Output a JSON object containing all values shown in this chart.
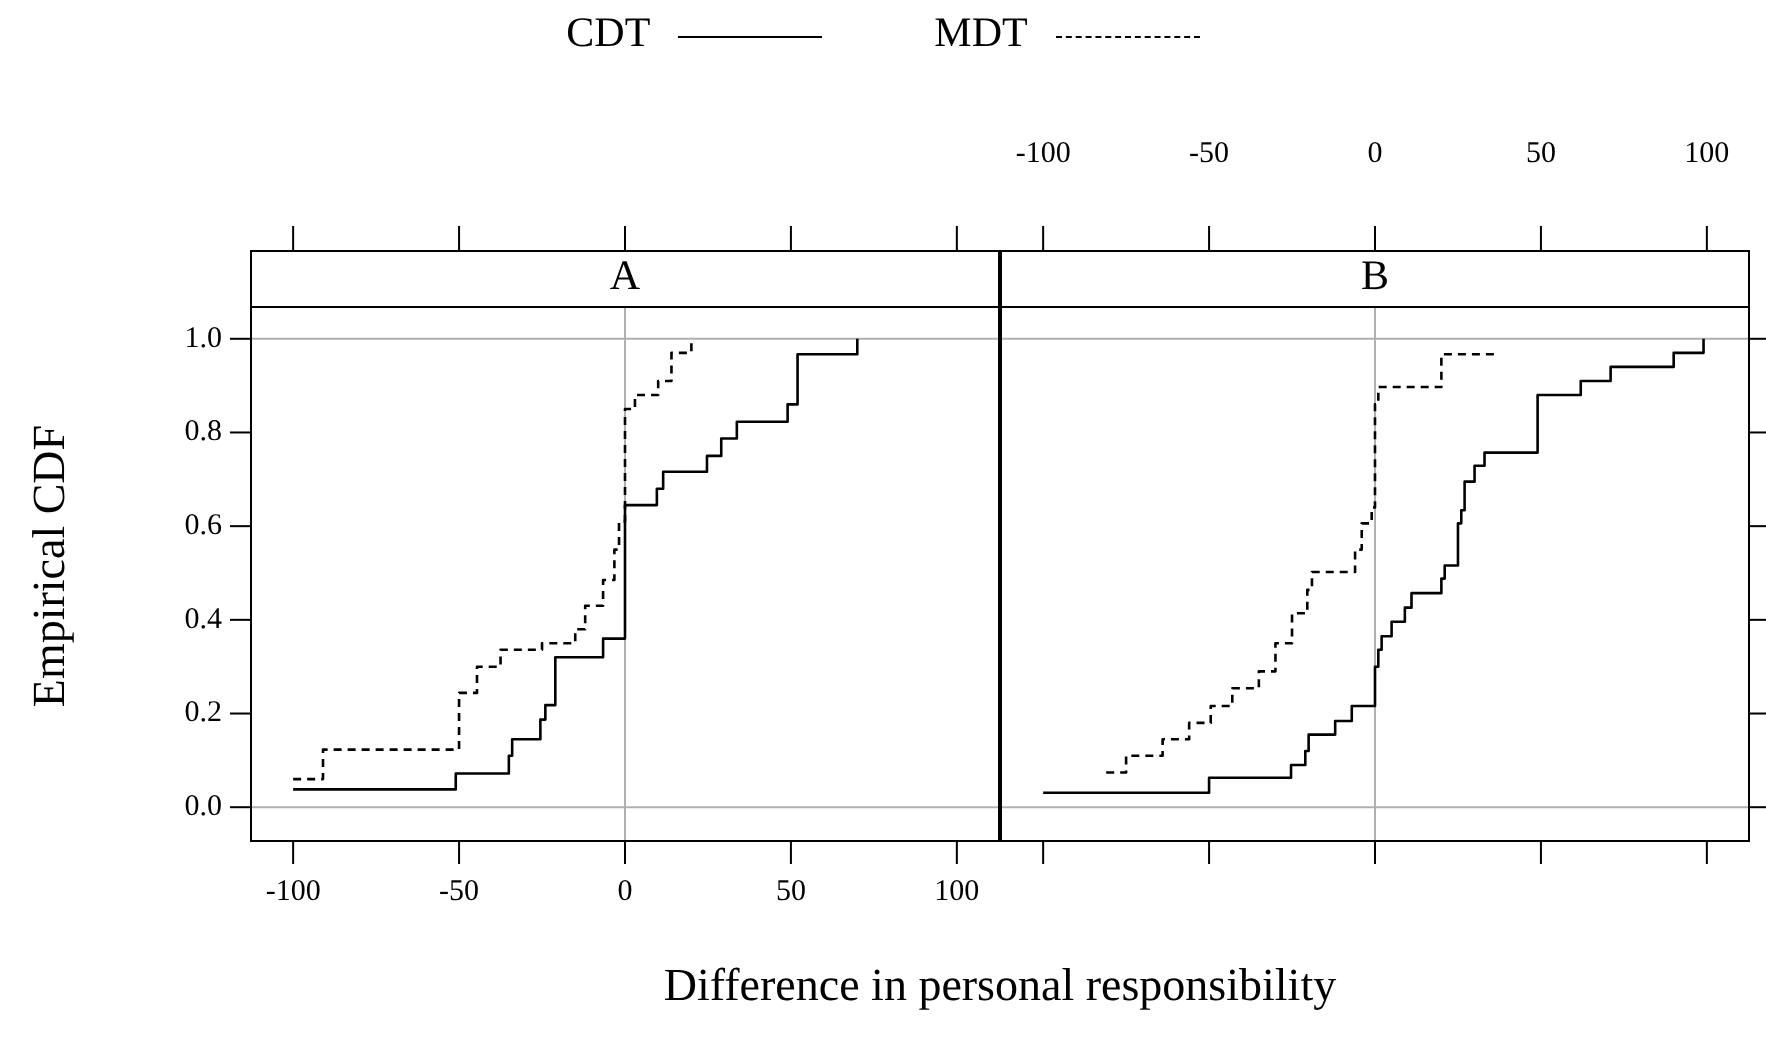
{
  "chart_data": [
    {
      "type": "step",
      "title": "A",
      "xlabel": "Difference in personal responsibility",
      "ylabel": "Empirical CDF",
      "legend": "top",
      "marker": "none",
      "xlim": [
        -113,
        113
      ],
      "xticks": [
        -100,
        -50,
        0,
        50,
        100
      ],
      "ylim": [
        -0.07,
        1.07
      ],
      "yticks": [
        {
          "value": 0,
          "label": "0.0"
        },
        0.2,
        0.4,
        0.6,
        0.8,
        {
          "value": 1,
          "label": "1.0"
        }
      ],
      "ref_lines": [
        {
          "axis": "y",
          "value": 0,
          "color": "#b0b0b0"
        },
        {
          "axis": "y",
          "value": 1,
          "color": "#b0b0b0"
        },
        {
          "axis": "x",
          "value": 0,
          "color": "#b0b0b0"
        }
      ],
      "series": [
        {
          "name": "CDT",
          "color": "#000000",
          "line_style": "solid",
          "x": [
            -100,
            -51,
            -35,
            -34,
            -25.5,
            -24,
            -21,
            -6.6,
            0,
            9.6,
            11.5,
            24.7,
            29,
            33.7,
            49,
            52,
            70
          ],
          "values": [
            0.038,
            0.072,
            0.11,
            0.145,
            0.187,
            0.218,
            0.32,
            0.36,
            0.645,
            0.68,
            0.716,
            0.75,
            0.787,
            0.823,
            0.86,
            0.967,
            1.0
          ]
        },
        {
          "name": "MDT",
          "color": "#000000",
          "line_style": "dashed",
          "x": [
            -100,
            -91,
            -50,
            -44.6,
            -37.5,
            -25,
            -15,
            -12,
            -6.6,
            -3.2,
            -1.8,
            0,
            3,
            10,
            14,
            20
          ],
          "values": [
            0.06,
            0.123,
            0.244,
            0.3,
            0.336,
            0.35,
            0.38,
            0.43,
            0.485,
            0.55,
            0.61,
            0.85,
            0.88,
            0.91,
            0.97,
            1.0
          ]
        }
      ]
    },
    {
      "type": "step",
      "title": "B",
      "marker": "none",
      "tick_labels": "x",
      "xlim": [
        -113,
        113
      ],
      "xticks": [
        -100,
        -50,
        0,
        50,
        100
      ],
      "ylim": [
        -0.07,
        1.07
      ],
      "yticks": [
        0,
        0.2,
        0.4,
        0.6,
        0.8,
        1
      ],
      "ref_lines": [
        {
          "axis": "y",
          "value": 0,
          "color": "#b0b0b0"
        },
        {
          "axis": "y",
          "value": 1,
          "color": "#b0b0b0"
        },
        {
          "axis": "x",
          "value": 0,
          "color": "#b0b0b0"
        }
      ],
      "series": [
        {
          "color": "#000000",
          "line_style": "solid",
          "x": [
            -100,
            -50,
            -25.3,
            -21,
            -20,
            -12,
            -7,
            0,
            1,
            2,
            5,
            9,
            11,
            20,
            21,
            25,
            26,
            27,
            30,
            33,
            49,
            62,
            71,
            90,
            99
          ],
          "values": [
            0.031,
            0.063,
            0.09,
            0.12,
            0.155,
            0.184,
            0.216,
            0.3,
            0.336,
            0.365,
            0.396,
            0.426,
            0.457,
            0.488,
            0.516,
            0.606,
            0.634,
            0.695,
            0.729,
            0.757,
            0.88,
            0.91,
            0.94,
            0.97,
            1.0
          ]
        },
        {
          "color": "#000000",
          "line_style": "dashed",
          "x": [
            -81,
            -75,
            -64,
            -56,
            -49.5,
            -43,
            -35,
            -30,
            -25,
            -20.4,
            -19,
            -6,
            -4,
            -1,
            0,
            1,
            20,
            37
          ],
          "values": [
            0.074,
            0.11,
            0.145,
            0.18,
            0.216,
            0.254,
            0.29,
            0.35,
            0.414,
            0.464,
            0.502,
            0.55,
            0.606,
            0.64,
            0.86,
            0.897,
            0.967,
            0.967
          ]
        }
      ]
    }
  ]
}
